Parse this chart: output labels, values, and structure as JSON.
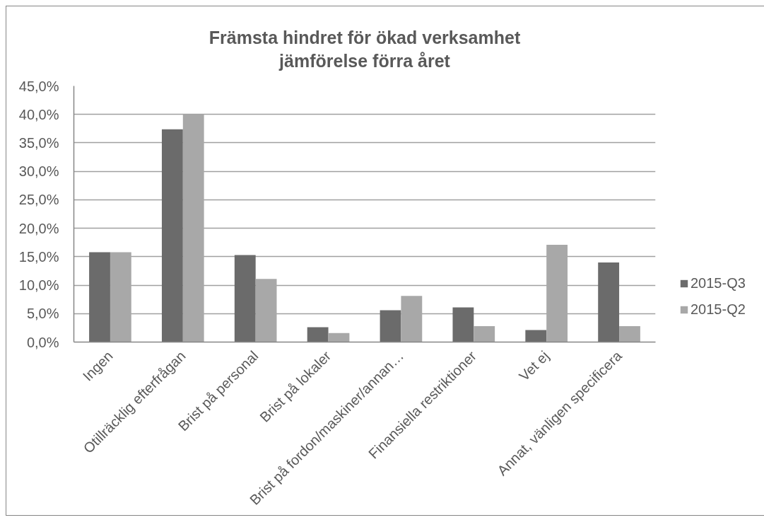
{
  "chart_data": {
    "type": "bar",
    "title": "Främsta hindret för ökad verksamhet\njämförelse förra året",
    "categories": [
      "Ingen",
      "Otillräcklig efterfrågan",
      "Brist på personal",
      "Brist på lokaler",
      "Brist på fordon/maskiner/annan…",
      "Finansiella restriktioner",
      "Vet ej",
      "Annat, vänligen specificera"
    ],
    "series": [
      {
        "name": "2015-Q3",
        "color": "#6b6b6b",
        "values": [
          15.8,
          37.4,
          15.3,
          2.6,
          5.6,
          6.1,
          2.1,
          14.0
        ]
      },
      {
        "name": "2015-Q2",
        "color": "#a8a8a8",
        "values": [
          15.8,
          40.0,
          11.1,
          1.6,
          8.1,
          2.8,
          17.1,
          2.8
        ]
      }
    ],
    "ylim": [
      0,
      45
    ],
    "yticks": [
      {
        "value": 0,
        "label": "0,0%"
      },
      {
        "value": 5,
        "label": "5,0%"
      },
      {
        "value": 10,
        "label": "10,0%"
      },
      {
        "value": 15,
        "label": "15,0%"
      },
      {
        "value": 20,
        "label": "20,0%"
      },
      {
        "value": 25,
        "label": "25,0%"
      },
      {
        "value": 30,
        "label": "30,0%"
      },
      {
        "value": 35,
        "label": "35,0%"
      },
      {
        "value": 40,
        "label": "40,0%"
      },
      {
        "value": 45,
        "label": "45,0%"
      }
    ],
    "grid": "y",
    "legend": "right"
  }
}
